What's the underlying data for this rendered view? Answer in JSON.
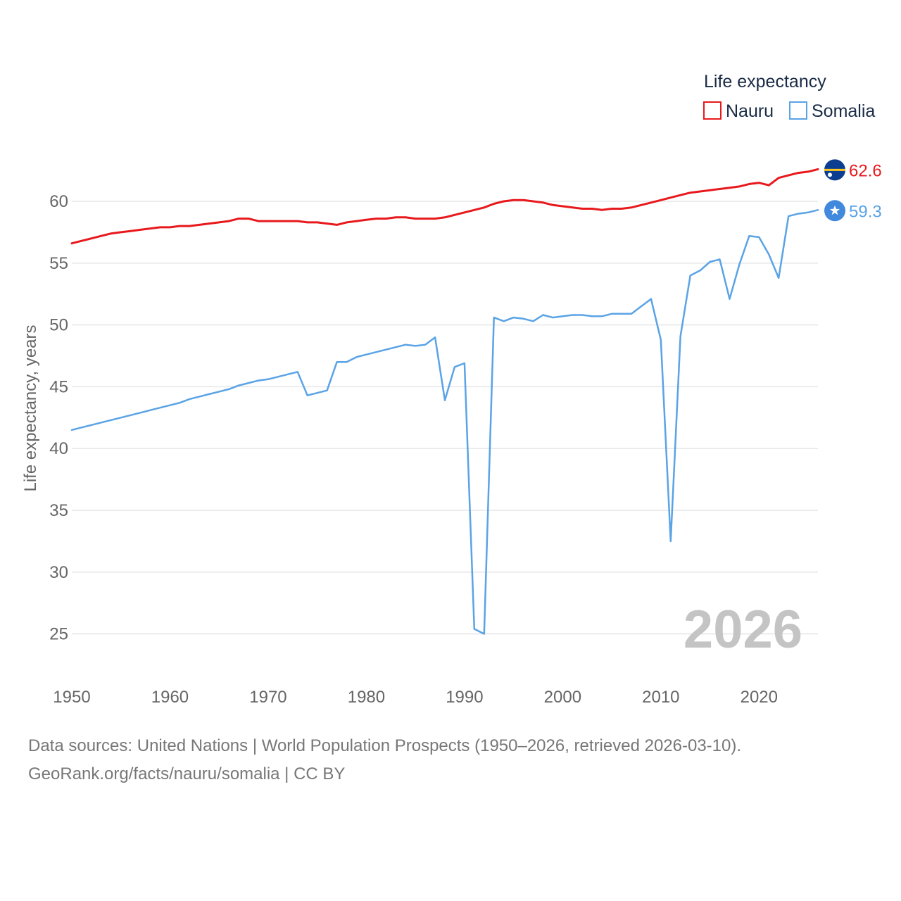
{
  "chart_data": {
    "type": "line",
    "legend_title": "Life expectancy",
    "ylabel": "Life expectancy, years",
    "xlabel": "",
    "xlim": [
      1950,
      2026
    ],
    "ylim": [
      21.5,
      64.5
    ],
    "x_ticks": [
      1950,
      1960,
      1970,
      1980,
      1990,
      2000,
      2010,
      2020
    ],
    "y_ticks": [
      25,
      30,
      35,
      40,
      45,
      50,
      55,
      60
    ],
    "year_watermark": "2026",
    "x": [
      1950,
      1951,
      1952,
      1953,
      1954,
      1955,
      1956,
      1957,
      1958,
      1959,
      1960,
      1961,
      1962,
      1963,
      1964,
      1965,
      1966,
      1967,
      1968,
      1969,
      1970,
      1971,
      1972,
      1973,
      1974,
      1975,
      1976,
      1977,
      1978,
      1979,
      1980,
      1981,
      1982,
      1983,
      1984,
      1985,
      1986,
      1987,
      1988,
      1989,
      1990,
      1991,
      1992,
      1993,
      1994,
      1995,
      1996,
      1997,
      1998,
      1999,
      2000,
      2001,
      2002,
      2003,
      2004,
      2005,
      2006,
      2007,
      2008,
      2009,
      2010,
      2011,
      2012,
      2013,
      2014,
      2015,
      2016,
      2017,
      2018,
      2019,
      2020,
      2021,
      2022,
      2023,
      2024,
      2025,
      2026
    ],
    "series": [
      {
        "name": "Nauru",
        "color": "#e8191d",
        "end_label": "62.6",
        "flag": "nauru-flag",
        "values": [
          56.6,
          56.8,
          57.0,
          57.2,
          57.4,
          57.5,
          57.6,
          57.7,
          57.8,
          57.9,
          57.9,
          58.0,
          58.0,
          58.1,
          58.2,
          58.3,
          58.4,
          58.6,
          58.6,
          58.4,
          58.4,
          58.4,
          58.4,
          58.4,
          58.3,
          58.3,
          58.2,
          58.1,
          58.3,
          58.4,
          58.5,
          58.6,
          58.6,
          58.7,
          58.7,
          58.6,
          58.6,
          58.6,
          58.7,
          58.9,
          59.1,
          59.3,
          59.5,
          59.8,
          60.0,
          60.1,
          60.1,
          60.0,
          59.9,
          59.7,
          59.6,
          59.5,
          59.4,
          59.4,
          59.3,
          59.4,
          59.4,
          59.5,
          59.7,
          59.9,
          60.1,
          60.3,
          60.5,
          60.7,
          60.8,
          60.9,
          61.0,
          61.1,
          61.2,
          61.4,
          61.5,
          61.3,
          61.9,
          62.1,
          62.3,
          62.4,
          62.6
        ]
      },
      {
        "name": "Somalia",
        "color": "#5aa3e6",
        "end_label": "59.3",
        "flag": "somalia-flag",
        "values": [
          41.5,
          41.7,
          41.9,
          42.1,
          42.3,
          42.5,
          42.7,
          42.9,
          43.1,
          43.3,
          43.5,
          43.7,
          44.0,
          44.2,
          44.4,
          44.6,
          44.8,
          45.1,
          45.3,
          45.5,
          45.6,
          45.8,
          46.0,
          46.2,
          44.3,
          44.5,
          44.7,
          47.0,
          47.0,
          47.4,
          47.6,
          47.8,
          48.0,
          48.2,
          48.4,
          48.3,
          48.4,
          49.0,
          43.9,
          46.6,
          46.9,
          25.4,
          25.0,
          50.6,
          50.3,
          50.6,
          50.5,
          50.3,
          50.8,
          50.6,
          50.7,
          50.8,
          50.8,
          50.7,
          50.7,
          50.9,
          50.9,
          50.9,
          51.5,
          52.1,
          48.8,
          32.5,
          49.1,
          54.0,
          54.4,
          55.1,
          55.3,
          52.1,
          54.9,
          57.2,
          57.1,
          55.7,
          53.8,
          58.8,
          59.0,
          59.1,
          59.3
        ]
      }
    ]
  },
  "footer": {
    "source_line": "Data sources: United Nations | World Population Prospects (1950–2026, retrieved 2026-03-10).",
    "attribution": "GeoRank.org/facts/nauru/somalia | CC BY"
  }
}
